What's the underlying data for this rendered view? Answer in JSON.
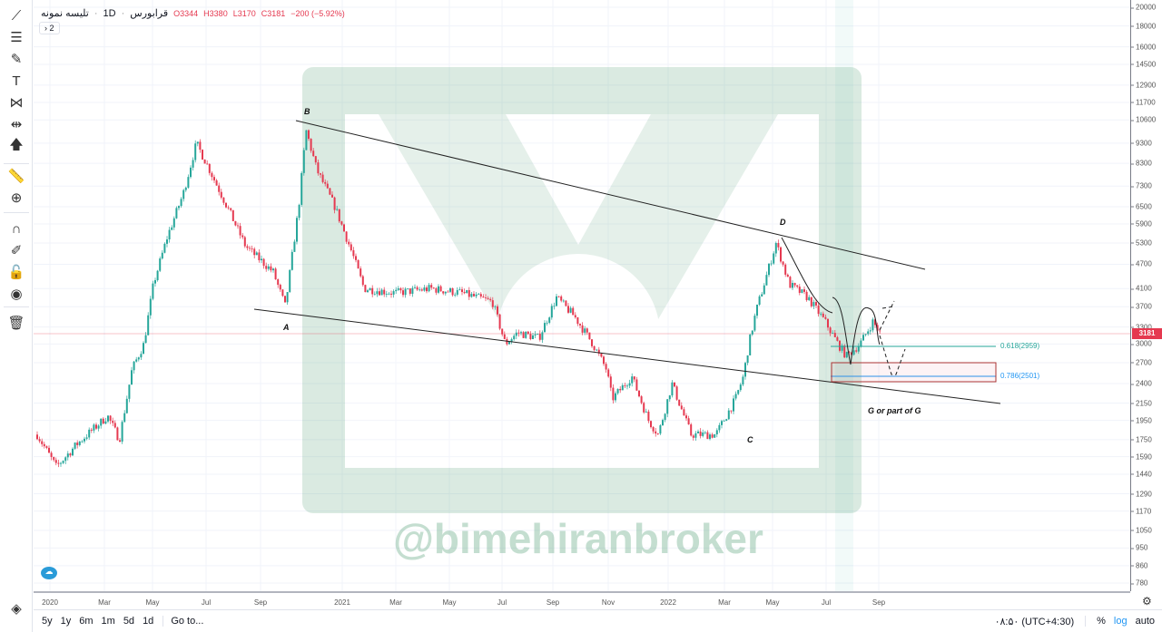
{
  "legend": {
    "symbol": "قرابورس",
    "interval": "1D",
    "study": "تلیسه نمونه",
    "open": "O3344",
    "high": "H3380",
    "low": "L3170",
    "close": "C3181",
    "change": "−200 (−5.92%)",
    "collapsed_count": "2"
  },
  "toolbar": {
    "icons": [
      "trend-line-icon",
      "fib-retracement-icon",
      "brush-icon",
      "text-icon",
      "pattern-icon",
      "prediction-icon",
      "arrow-icon",
      "ruler-icon",
      "zoom-in-icon",
      "magnet-icon",
      "lock-drawing-icon",
      "unlock-icon",
      "eye-icon",
      "trash-icon"
    ],
    "layers_icon": "layers-icon"
  },
  "price_axis": {
    "scale": "log",
    "ticks": [
      20000,
      18000,
      16000,
      14500,
      12900,
      11700,
      10600,
      9300,
      8300,
      7300,
      6500,
      5900,
      5300,
      4700,
      4100,
      3700,
      3300,
      3000,
      2700,
      2400,
      2150,
      1950,
      1750,
      1590,
      1440,
      1290,
      1170,
      1050,
      950,
      860,
      780
    ],
    "last_price": "3181",
    "last_price_color": "#e53950"
  },
  "time_axis": {
    "ticks": [
      {
        "label": "2020",
        "date": "2020-01-01"
      },
      {
        "label": "Mar",
        "date": "2020-03-01"
      },
      {
        "label": "May",
        "date": "2020-05-01"
      },
      {
        "label": "Jul",
        "date": "2020-07-01"
      },
      {
        "label": "Sep",
        "date": "2020-09-01"
      },
      {
        "label": "2021",
        "date": "2021-01-01"
      },
      {
        "label": "Mar",
        "date": "2021-03-01"
      },
      {
        "label": "May",
        "date": "2021-05-01"
      },
      {
        "label": "Jul",
        "date": "2021-07-01"
      },
      {
        "label": "Sep",
        "date": "2021-09-01"
      },
      {
        "label": "Nov",
        "date": "2021-11-01"
      },
      {
        "label": "2022",
        "date": "2022-01-01"
      },
      {
        "label": "Mar",
        "date": "2022-03-01"
      },
      {
        "label": "May",
        "date": "2022-05-01"
      },
      {
        "label": "Jul",
        "date": "2022-07-01"
      },
      {
        "label": "Sep",
        "date": "2022-09-01"
      }
    ]
  },
  "chart_data": {
    "type": "candlestick",
    "scale": "log",
    "ylim": [
      780,
      20000
    ],
    "up_color": "#26a69a",
    "down_color": "#e53950",
    "price_path": [
      [
        "2019-12-18",
        1800
      ],
      [
        "2020-01-08",
        1500
      ],
      [
        "2020-01-30",
        1700
      ],
      [
        "2020-03-05",
        2000
      ],
      [
        "2020-03-20",
        1750
      ],
      [
        "2020-04-05",
        2600
      ],
      [
        "2020-04-20",
        3000
      ],
      [
        "2020-05-02",
        4200
      ],
      [
        "2020-05-18",
        5500
      ],
      [
        "2020-06-05",
        7000
      ],
      [
        "2020-06-20",
        9300
      ],
      [
        "2020-07-05",
        8000
      ],
      [
        "2020-07-25",
        6500
      ],
      [
        "2020-08-15",
        5200
      ],
      [
        "2020-09-20",
        4500
      ],
      [
        "2020-10-08",
        3700
      ],
      [
        "2020-10-28",
        6500
      ],
      [
        "2020-11-08",
        10000
      ],
      [
        "2020-11-24",
        8000
      ],
      [
        "2020-12-21",
        6500
      ],
      [
        "2021-01-12",
        5000
      ],
      [
        "2021-01-25",
        4100
      ],
      [
        "2021-02-28",
        4000
      ],
      [
        "2021-04-10",
        4100
      ],
      [
        "2021-05-15",
        4000
      ],
      [
        "2021-06-20",
        3800
      ],
      [
        "2021-07-05",
        3000
      ],
      [
        "2021-07-20",
        3200
      ],
      [
        "2021-08-15",
        3100
      ],
      [
        "2021-09-05",
        3900
      ],
      [
        "2021-09-25",
        3500
      ],
      [
        "2021-10-15",
        3000
      ],
      [
        "2021-10-30",
        2600
      ],
      [
        "2021-11-05",
        2200
      ],
      [
        "2021-11-25",
        2500
      ],
      [
        "2021-12-12",
        1950
      ],
      [
        "2021-12-22",
        1800
      ],
      [
        "2022-01-05",
        2400
      ],
      [
        "2022-01-25",
        1800
      ],
      [
        "2022-02-20",
        1800
      ],
      [
        "2022-03-15",
        2200
      ],
      [
        "2022-03-25",
        2500
      ],
      [
        "2022-04-01",
        3000
      ],
      [
        "2022-04-10",
        3600
      ],
      [
        "2022-05-05",
        5300
      ],
      [
        "2022-05-20",
        4200
      ],
      [
        "2022-06-10",
        3900
      ],
      [
        "2022-06-30",
        3400
      ],
      [
        "2022-07-15",
        3000
      ],
      [
        "2022-07-25",
        2800
      ],
      [
        "2022-08-10",
        3000
      ],
      [
        "2022-08-25",
        3400
      ],
      [
        "2022-09-03",
        3181
      ]
    ]
  },
  "annotations": {
    "A": "A",
    "B": "B",
    "C": "C",
    "D": "D",
    "G": "G or part of G",
    "fib_618": "0.618(2959)",
    "fib_786": "0.786(2501)",
    "fib_618_color": "#26a69a",
    "fib_786_color": "#2196f3"
  },
  "watermark": "@bimehiranbroker",
  "bottom": {
    "ranges": [
      "5y",
      "1y",
      "6m",
      "1m",
      "5d",
      "1d"
    ],
    "goto": "Go to...",
    "time": "۰۸:۵۰ (UTC+4:30)",
    "percent": "%",
    "log": "log",
    "auto": "auto"
  }
}
